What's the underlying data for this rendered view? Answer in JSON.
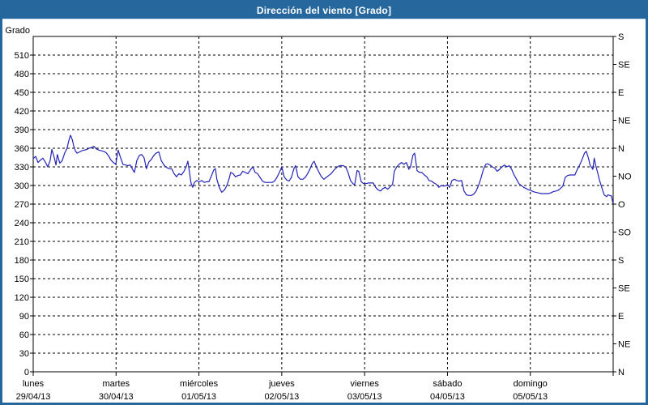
{
  "window": {
    "title": "Dirección del viento [Grado]"
  },
  "colors": {
    "titlebar": "#26689d",
    "frame_border": "#26689d",
    "line": "#2323b8",
    "grid": "#000000",
    "background": "#ffffff",
    "title_text": "#ffffff"
  },
  "chart_data": {
    "type": "line",
    "title": "Dirección del viento [Grado]",
    "ylabel": "Grado",
    "legend_position": "none",
    "grid": "dashed",
    "y_left": {
      "min": 0,
      "max": 540,
      "tick_step": 30,
      "ticks": [
        0,
        30,
        60,
        90,
        120,
        150,
        180,
        210,
        240,
        270,
        300,
        330,
        360,
        390,
        420,
        450,
        480,
        510
      ]
    },
    "y_right": {
      "tick_step_deg": 45,
      "labels_bottom_to_top": [
        "N",
        "NE",
        "E",
        "SE",
        "S",
        "SO",
        "O",
        "NO",
        "N",
        "NE",
        "E",
        "SE",
        "S"
      ]
    },
    "x_days": [
      {
        "name": "lunes",
        "date": "29/04/13"
      },
      {
        "name": "martes",
        "date": "30/04/13"
      },
      {
        "name": "miércoles",
        "date": "01/05/13"
      },
      {
        "name": "jueves",
        "date": "02/05/13"
      },
      {
        "name": "viernes",
        "date": "03/05/13"
      },
      {
        "name": "sábado",
        "date": "04/05/13"
      },
      {
        "name": "domingo",
        "date": "05/05/13"
      }
    ],
    "x_range_hours": [
      0,
      168
    ],
    "series": [
      {
        "name": "Dirección del viento",
        "unit": "Grado",
        "color": "#2323b8",
        "points": [
          [
            0,
            343
          ],
          [
            0.7,
            347
          ],
          [
            1.4,
            337
          ],
          [
            2.1,
            341
          ],
          [
            2.8,
            344
          ],
          [
            3.5,
            338
          ],
          [
            4.2,
            330
          ],
          [
            4.9,
            340
          ],
          [
            5.4,
            358
          ],
          [
            6.1,
            345
          ],
          [
            6.6,
            333
          ],
          [
            7,
            350
          ],
          [
            7.7,
            336
          ],
          [
            8.4,
            340
          ],
          [
            9.1,
            352
          ],
          [
            9.8,
            360
          ],
          [
            10.3,
            372
          ],
          [
            10.8,
            381
          ],
          [
            11.3,
            374
          ],
          [
            11.7,
            364
          ],
          [
            12.2,
            356
          ],
          [
            12.7,
            352
          ],
          [
            13.4,
            354
          ],
          [
            14.1,
            356
          ],
          [
            14.8,
            357
          ],
          [
            15.5,
            358
          ],
          [
            16.2,
            360
          ],
          [
            16.9,
            361
          ],
          [
            17.6,
            363
          ],
          [
            18.3,
            359
          ],
          [
            19,
            357
          ],
          [
            19.7,
            356
          ],
          [
            20.4,
            355
          ],
          [
            21.1,
            353
          ],
          [
            21.8,
            348
          ],
          [
            22.5,
            341
          ],
          [
            23.2,
            337
          ],
          [
            23.9,
            334
          ],
          [
            24.6,
            357
          ],
          [
            25.3,
            345
          ],
          [
            26,
            334
          ],
          [
            26.7,
            333
          ],
          [
            27.4,
            332
          ],
          [
            28.1,
            333
          ],
          [
            28.8,
            326
          ],
          [
            29.3,
            321
          ],
          [
            30,
            340
          ],
          [
            30.7,
            348
          ],
          [
            31.4,
            350
          ],
          [
            32.1,
            345
          ],
          [
            32.8,
            327
          ],
          [
            33.5,
            338
          ],
          [
            34.2,
            342
          ],
          [
            34.9,
            348
          ],
          [
            35.6,
            352
          ],
          [
            36.4,
            354
          ],
          [
            37.1,
            340
          ],
          [
            38,
            332
          ],
          [
            38.7,
            329
          ],
          [
            39.4,
            327
          ],
          [
            40.1,
            327
          ],
          [
            40.8,
            319
          ],
          [
            41.5,
            314
          ],
          [
            42.2,
            319
          ],
          [
            42.9,
            317
          ],
          [
            43.6,
            322
          ],
          [
            44.3,
            330
          ],
          [
            44.8,
            339
          ],
          [
            45.3,
            320
          ],
          [
            45.7,
            304
          ],
          [
            46.2,
            297
          ],
          [
            46.7,
            305
          ],
          [
            47.4,
            308
          ],
          [
            48.1,
            306
          ],
          [
            48.8,
            308
          ],
          [
            49.5,
            305
          ],
          [
            50.2,
            306
          ],
          [
            50.9,
            306
          ],
          [
            51.6,
            315
          ],
          [
            52.3,
            325
          ],
          [
            52.8,
            327
          ],
          [
            53.2,
            310
          ],
          [
            53.9,
            297
          ],
          [
            54.6,
            289
          ],
          [
            55.4,
            293
          ],
          [
            56.1,
            300
          ],
          [
            56.8,
            312
          ],
          [
            57.2,
            321
          ],
          [
            57.9,
            319
          ],
          [
            58.6,
            314
          ],
          [
            59.3,
            316
          ],
          [
            60,
            317
          ],
          [
            60.7,
            323
          ],
          [
            61.4,
            321
          ],
          [
            62.2,
            319
          ],
          [
            62.9,
            325
          ],
          [
            63.6,
            330
          ],
          [
            64.3,
            321
          ],
          [
            65,
            319
          ],
          [
            65.7,
            313
          ],
          [
            66.4,
            307
          ],
          [
            67.1,
            305
          ],
          [
            67.8,
            305
          ],
          [
            68.5,
            305
          ],
          [
            69.2,
            305
          ],
          [
            69.9,
            307
          ],
          [
            70.6,
            313
          ],
          [
            71.3,
            321
          ],
          [
            72,
            330
          ],
          [
            72.7,
            314
          ],
          [
            73.4,
            309
          ],
          [
            74.1,
            307
          ],
          [
            74.8,
            313
          ],
          [
            75.5,
            327
          ],
          [
            76,
            332
          ],
          [
            76.7,
            314
          ],
          [
            77.4,
            310
          ],
          [
            78.1,
            310
          ],
          [
            78.8,
            313
          ],
          [
            79.5,
            319
          ],
          [
            80.2,
            327
          ],
          [
            80.9,
            336
          ],
          [
            81.4,
            339
          ],
          [
            82.1,
            329
          ],
          [
            82.8,
            321
          ],
          [
            83.5,
            314
          ],
          [
            84.2,
            310
          ],
          [
            84.9,
            313
          ],
          [
            85.6,
            316
          ],
          [
            86.3,
            319
          ],
          [
            87,
            324
          ],
          [
            87.7,
            328
          ],
          [
            88.4,
            331
          ],
          [
            89.1,
            332
          ],
          [
            89.8,
            332
          ],
          [
            90.5,
            330
          ],
          [
            91.2,
            321
          ],
          [
            91.9,
            308
          ],
          [
            92.6,
            303
          ],
          [
            93.1,
            301
          ],
          [
            93.8,
            324
          ],
          [
            94.3,
            323
          ],
          [
            95,
            306
          ],
          [
            95.7,
            303
          ],
          [
            96.4,
            303
          ],
          [
            97.1,
            304
          ],
          [
            97.8,
            304
          ],
          [
            98.5,
            304
          ],
          [
            99.2,
            297
          ],
          [
            99.9,
            293
          ],
          [
            100.6,
            291
          ],
          [
            101.3,
            295
          ],
          [
            102,
            297
          ],
          [
            102.7,
            294
          ],
          [
            103.4,
            298
          ],
          [
            104.1,
            302
          ],
          [
            104.6,
            323
          ],
          [
            105.3,
            330
          ],
          [
            106,
            334
          ],
          [
            106.7,
            337
          ],
          [
            107.4,
            334
          ],
          [
            108.1,
            337
          ],
          [
            108.8,
            326
          ],
          [
            109.3,
            330
          ],
          [
            110,
            349
          ],
          [
            110.5,
            352
          ],
          [
            111.2,
            324
          ],
          [
            111.9,
            321
          ],
          [
            112.6,
            321
          ],
          [
            113.3,
            317
          ],
          [
            114,
            314
          ],
          [
            114.7,
            308
          ],
          [
            115.4,
            307
          ],
          [
            116.1,
            304
          ],
          [
            116.8,
            302
          ],
          [
            117.5,
            297
          ],
          [
            118.2,
            300
          ],
          [
            118.9,
            299
          ],
          [
            119.6,
            300
          ],
          [
            120.1,
            301
          ],
          [
            120.6,
            297
          ],
          [
            121.3,
            308
          ],
          [
            122,
            310
          ],
          [
            122.7,
            308
          ],
          [
            123.3,
            307
          ],
          [
            124.1,
            308
          ],
          [
            124.8,
            291
          ],
          [
            125.5,
            285
          ],
          [
            126.2,
            284
          ],
          [
            126.9,
            284
          ],
          [
            127.6,
            286
          ],
          [
            128.3,
            291
          ],
          [
            129,
            300
          ],
          [
            129.7,
            312
          ],
          [
            130.4,
            326
          ],
          [
            131.1,
            334
          ],
          [
            131.6,
            335
          ],
          [
            132.3,
            333
          ],
          [
            133,
            330
          ],
          [
            133.7,
            328
          ],
          [
            134.4,
            323
          ],
          [
            135.1,
            326
          ],
          [
            135.8,
            330
          ],
          [
            136.5,
            333
          ],
          [
            137.2,
            330
          ],
          [
            137.9,
            332
          ],
          [
            138.6,
            326
          ],
          [
            139.3,
            317
          ],
          [
            140,
            310
          ],
          [
            140.7,
            303
          ],
          [
            141.4,
            300
          ],
          [
            142.1,
            297
          ],
          [
            142.8,
            295
          ],
          [
            143.5,
            293
          ],
          [
            144.2,
            292
          ],
          [
            144.9,
            290
          ],
          [
            145.6,
            289
          ],
          [
            146.4,
            288
          ],
          [
            147.1,
            287
          ],
          [
            147.8,
            287
          ],
          [
            148.5,
            287
          ],
          [
            149.2,
            287
          ],
          [
            149.9,
            288
          ],
          [
            150.6,
            290
          ],
          [
            151.3,
            291
          ],
          [
            152,
            292
          ],
          [
            152.7,
            295
          ],
          [
            153.4,
            299
          ],
          [
            154.1,
            313
          ],
          [
            154.8,
            316
          ],
          [
            155.5,
            317
          ],
          [
            156.2,
            317
          ],
          [
            156.9,
            317
          ],
          [
            157.6,
            326
          ],
          [
            158.3,
            333
          ],
          [
            159,
            342
          ],
          [
            159.7,
            352
          ],
          [
            160.2,
            355
          ],
          [
            160.9,
            343
          ],
          [
            161.3,
            333
          ],
          [
            162.1,
            326
          ],
          [
            162.5,
            344
          ],
          [
            163,
            331
          ],
          [
            163.5,
            321
          ],
          [
            164,
            309
          ],
          [
            164.7,
            297
          ],
          [
            165.4,
            285
          ],
          [
            166.1,
            282
          ],
          [
            166.5,
            285
          ],
          [
            167,
            284
          ],
          [
            167.5,
            283
          ],
          [
            167.9,
            272
          ]
        ]
      }
    ]
  }
}
